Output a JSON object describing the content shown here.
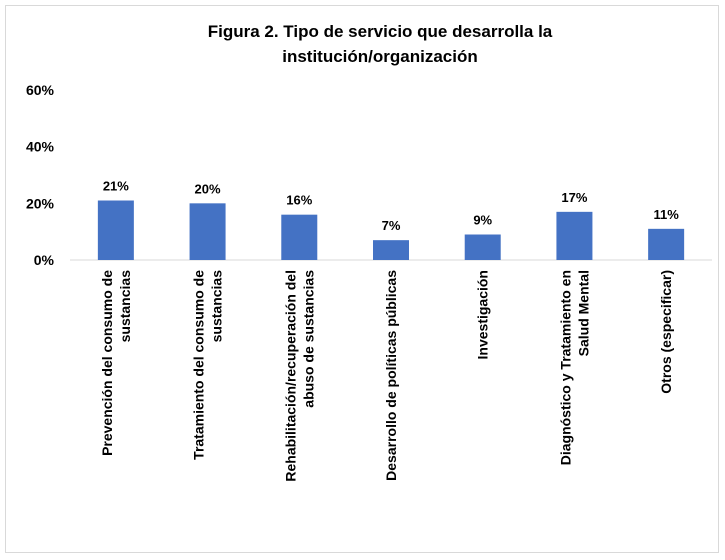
{
  "chart_data": {
    "type": "bar",
    "title_lines": [
      "Figura 2. Tipo de servicio que desarrolla la",
      "institución/organización"
    ],
    "categories": [
      [
        "Prevención del consumo de",
        "sustancias"
      ],
      [
        "Tratamiento del consumo de",
        "sustancias"
      ],
      [
        "Rehabilitación/recuperación del",
        "abuso de sustancias"
      ],
      [
        "Desarrollo de políticas públicas"
      ],
      [
        "Investigación"
      ],
      [
        "Diagnóstico y Tratamiento en",
        "Salud Mental"
      ],
      [
        "Otros (especificar)"
      ]
    ],
    "values": [
      21,
      20,
      16,
      7,
      9,
      17,
      11
    ],
    "data_labels": [
      "21%",
      "20%",
      "16%",
      "7%",
      "9%",
      "17%",
      "11%"
    ],
    "ylim": [
      0,
      60
    ],
    "y_ticks": [
      0,
      20,
      40,
      60
    ],
    "y_tick_labels": [
      "0%",
      "20%",
      "40%",
      "60%"
    ],
    "xlabel": "",
    "ylabel": "",
    "grid": false,
    "legend": "none",
    "colors": {
      "bar": "#4472c4",
      "axis": "#d9d9d9",
      "text": "#000000"
    }
  }
}
